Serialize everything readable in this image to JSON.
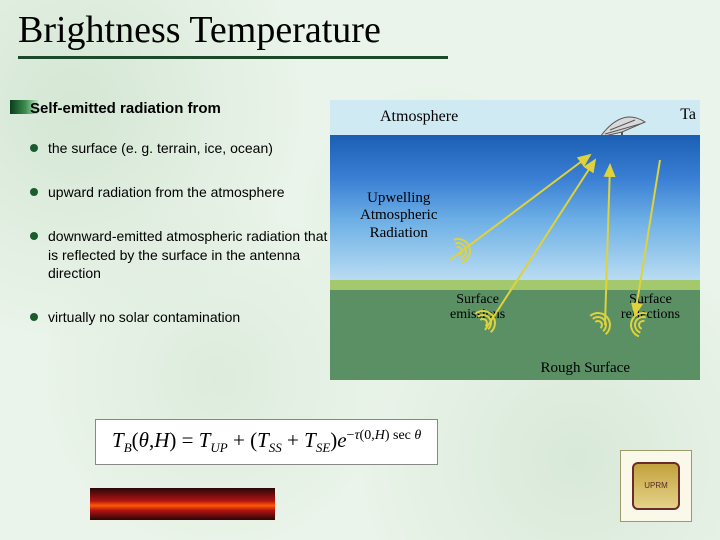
{
  "title": "Brightness Temperature",
  "lead": "Self-emitted radiation from",
  "bullets": [
    "the surface (e. g. terrain, ice, ocean)",
    "upward radiation from the atmosphere",
    "downward-emitted atmospheric radiation that is reflected by the surface in the antenna direction",
    "virtually no solar contamination"
  ],
  "diagram": {
    "atmosphere_label": "Atmosphere",
    "ta_label": "Ta",
    "upwelling_label": "Upwelling\nAtmospheric\nRadiation",
    "surface_emissions_label": "Surface\nemissions",
    "surface_reflections_label": "Surface\nreflections",
    "rough_surface_label": "Rough Surface",
    "colors": {
      "sky": "#cfeaf3",
      "atm_gradient_top": "#1a5fb4",
      "atm_gradient_bottom": "#b9dcf2",
      "ocean": "#5b8f64",
      "ocean_highlight": "#a4c96d",
      "wave_color": "#e0d23a"
    }
  },
  "formula": {
    "lhs": "T_B(θ,H)",
    "rhs_terms": [
      "T_UP",
      "T_SS",
      "T_SE"
    ],
    "exponent": "−τ(0,H) sec θ"
  },
  "logo_text": "RECINTO UNIVERSITARIO DE MAYAGÜEZ",
  "styling": {
    "slide_bg": "#eaf4ea",
    "title_fontsize_pt": 28,
    "title_underline_color": "#1a4a2a",
    "body_fontsize_pt": 11,
    "bullet_color": "#1a5c2e",
    "accent_gradient": [
      "#0a3d1c",
      "#3c8c4f",
      "#bfe3c0"
    ],
    "red_strip_gradient": [
      "#2a0606",
      "#b11313",
      "#ff5a00"
    ]
  }
}
